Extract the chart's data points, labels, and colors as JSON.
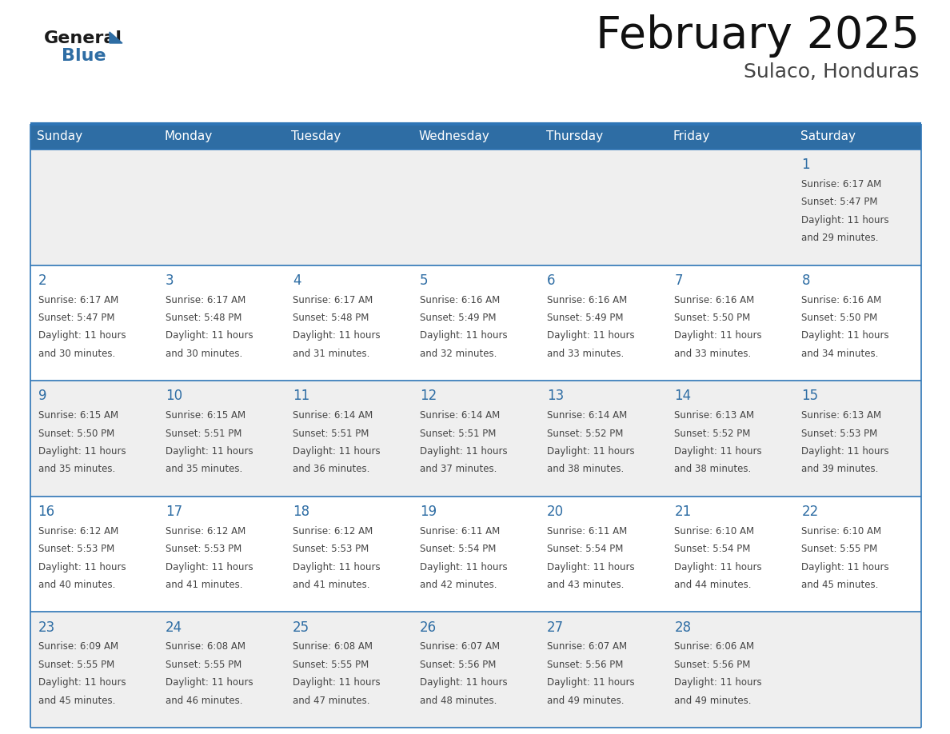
{
  "title": "February 2025",
  "subtitle": "Sulaco, Honduras",
  "header_bg": "#2E6DA4",
  "header_text_color": "#FFFFFF",
  "day_names": [
    "Sunday",
    "Monday",
    "Tuesday",
    "Wednesday",
    "Thursday",
    "Friday",
    "Saturday"
  ],
  "cell_bg_odd": "#EFEFEF",
  "cell_bg_even": "#FFFFFF",
  "day_num_color": "#2E6DA4",
  "text_color": "#444444",
  "line_color": "#2E75B6",
  "days": [
    {
      "day": 1,
      "col": 6,
      "row": 0,
      "sunrise": "6:17 AM",
      "sunset": "5:47 PM",
      "daylight": "11 hours and 29 minutes."
    },
    {
      "day": 2,
      "col": 0,
      "row": 1,
      "sunrise": "6:17 AM",
      "sunset": "5:47 PM",
      "daylight": "11 hours and 30 minutes."
    },
    {
      "day": 3,
      "col": 1,
      "row": 1,
      "sunrise": "6:17 AM",
      "sunset": "5:48 PM",
      "daylight": "11 hours and 30 minutes."
    },
    {
      "day": 4,
      "col": 2,
      "row": 1,
      "sunrise": "6:17 AM",
      "sunset": "5:48 PM",
      "daylight": "11 hours and 31 minutes."
    },
    {
      "day": 5,
      "col": 3,
      "row": 1,
      "sunrise": "6:16 AM",
      "sunset": "5:49 PM",
      "daylight": "11 hours and 32 minutes."
    },
    {
      "day": 6,
      "col": 4,
      "row": 1,
      "sunrise": "6:16 AM",
      "sunset": "5:49 PM",
      "daylight": "11 hours and 33 minutes."
    },
    {
      "day": 7,
      "col": 5,
      "row": 1,
      "sunrise": "6:16 AM",
      "sunset": "5:50 PM",
      "daylight": "11 hours and 33 minutes."
    },
    {
      "day": 8,
      "col": 6,
      "row": 1,
      "sunrise": "6:16 AM",
      "sunset": "5:50 PM",
      "daylight": "11 hours and 34 minutes."
    },
    {
      "day": 9,
      "col": 0,
      "row": 2,
      "sunrise": "6:15 AM",
      "sunset": "5:50 PM",
      "daylight": "11 hours and 35 minutes."
    },
    {
      "day": 10,
      "col": 1,
      "row": 2,
      "sunrise": "6:15 AM",
      "sunset": "5:51 PM",
      "daylight": "11 hours and 35 minutes."
    },
    {
      "day": 11,
      "col": 2,
      "row": 2,
      "sunrise": "6:14 AM",
      "sunset": "5:51 PM",
      "daylight": "11 hours and 36 minutes."
    },
    {
      "day": 12,
      "col": 3,
      "row": 2,
      "sunrise": "6:14 AM",
      "sunset": "5:51 PM",
      "daylight": "11 hours and 37 minutes."
    },
    {
      "day": 13,
      "col": 4,
      "row": 2,
      "sunrise": "6:14 AM",
      "sunset": "5:52 PM",
      "daylight": "11 hours and 38 minutes."
    },
    {
      "day": 14,
      "col": 5,
      "row": 2,
      "sunrise": "6:13 AM",
      "sunset": "5:52 PM",
      "daylight": "11 hours and 38 minutes."
    },
    {
      "day": 15,
      "col": 6,
      "row": 2,
      "sunrise": "6:13 AM",
      "sunset": "5:53 PM",
      "daylight": "11 hours and 39 minutes."
    },
    {
      "day": 16,
      "col": 0,
      "row": 3,
      "sunrise": "6:12 AM",
      "sunset": "5:53 PM",
      "daylight": "11 hours and 40 minutes."
    },
    {
      "day": 17,
      "col": 1,
      "row": 3,
      "sunrise": "6:12 AM",
      "sunset": "5:53 PM",
      "daylight": "11 hours and 41 minutes."
    },
    {
      "day": 18,
      "col": 2,
      "row": 3,
      "sunrise": "6:12 AM",
      "sunset": "5:53 PM",
      "daylight": "11 hours and 41 minutes."
    },
    {
      "day": 19,
      "col": 3,
      "row": 3,
      "sunrise": "6:11 AM",
      "sunset": "5:54 PM",
      "daylight": "11 hours and 42 minutes."
    },
    {
      "day": 20,
      "col": 4,
      "row": 3,
      "sunrise": "6:11 AM",
      "sunset": "5:54 PM",
      "daylight": "11 hours and 43 minutes."
    },
    {
      "day": 21,
      "col": 5,
      "row": 3,
      "sunrise": "6:10 AM",
      "sunset": "5:54 PM",
      "daylight": "11 hours and 44 minutes."
    },
    {
      "day": 22,
      "col": 6,
      "row": 3,
      "sunrise": "6:10 AM",
      "sunset": "5:55 PM",
      "daylight": "11 hours and 45 minutes."
    },
    {
      "day": 23,
      "col": 0,
      "row": 4,
      "sunrise": "6:09 AM",
      "sunset": "5:55 PM",
      "daylight": "11 hours and 45 minutes."
    },
    {
      "day": 24,
      "col": 1,
      "row": 4,
      "sunrise": "6:08 AM",
      "sunset": "5:55 PM",
      "daylight": "11 hours and 46 minutes."
    },
    {
      "day": 25,
      "col": 2,
      "row": 4,
      "sunrise": "6:08 AM",
      "sunset": "5:55 PM",
      "daylight": "11 hours and 47 minutes."
    },
    {
      "day": 26,
      "col": 3,
      "row": 4,
      "sunrise": "6:07 AM",
      "sunset": "5:56 PM",
      "daylight": "11 hours and 48 minutes."
    },
    {
      "day": 27,
      "col": 4,
      "row": 4,
      "sunrise": "6:07 AM",
      "sunset": "5:56 PM",
      "daylight": "11 hours and 49 minutes."
    },
    {
      "day": 28,
      "col": 5,
      "row": 4,
      "sunrise": "6:06 AM",
      "sunset": "5:56 PM",
      "daylight": "11 hours and 49 minutes."
    }
  ],
  "num_rows": 5,
  "num_cols": 7
}
